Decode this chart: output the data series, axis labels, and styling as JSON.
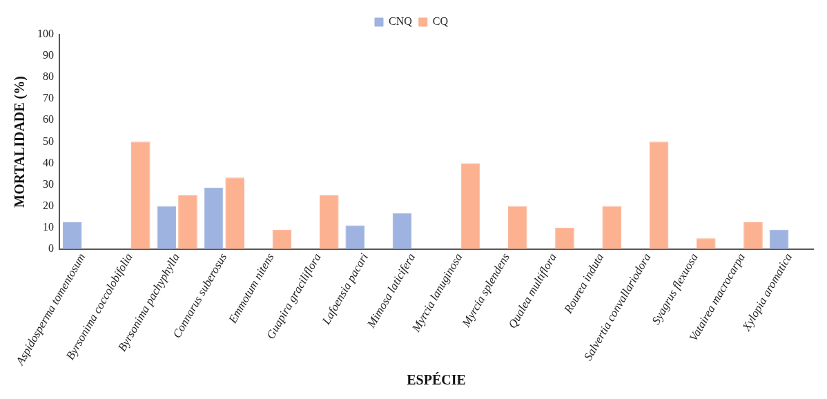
{
  "chart_data": {
    "type": "bar",
    "xlabel": "ESPÉCIE",
    "ylabel": "MORTALIDADE (%)",
    "categories": [
      "Aspidosperma tomentosum",
      "Byrsonima coccolobifolia",
      "Byrsonima pachyphylla",
      "Connarus suberosus",
      "Emmotum nitens",
      "Guapira graciliflora",
      "Lafoensia pacari",
      "Mimosa laticifera",
      "Myrcia lanuginosa",
      "Myrcia splendens",
      "Qualea multiflora",
      "Rourea induta",
      "Salvertia convallariodora",
      "Syagrus flexuosa",
      "Vatairea macrocarpa",
      "Xylopia aromatica"
    ],
    "series": [
      {
        "name": "CNQ",
        "color": "#9fb3e0",
        "values": [
          12.5,
          0,
          20,
          28.6,
          0,
          0,
          11,
          16.7,
          0,
          0,
          0,
          0,
          0,
          0,
          0,
          9
        ]
      },
      {
        "name": "CQ",
        "color": "#fcb190",
        "values": [
          0,
          50,
          25,
          33.3,
          9,
          25,
          0,
          0,
          40,
          20,
          10,
          20,
          50,
          5,
          12.5,
          0
        ]
      }
    ],
    "ylim": [
      0,
      100
    ],
    "yticks": [
      0,
      10,
      20,
      30,
      40,
      50,
      60,
      70,
      80,
      90,
      100
    ],
    "grid": false,
    "legend": "top"
  }
}
